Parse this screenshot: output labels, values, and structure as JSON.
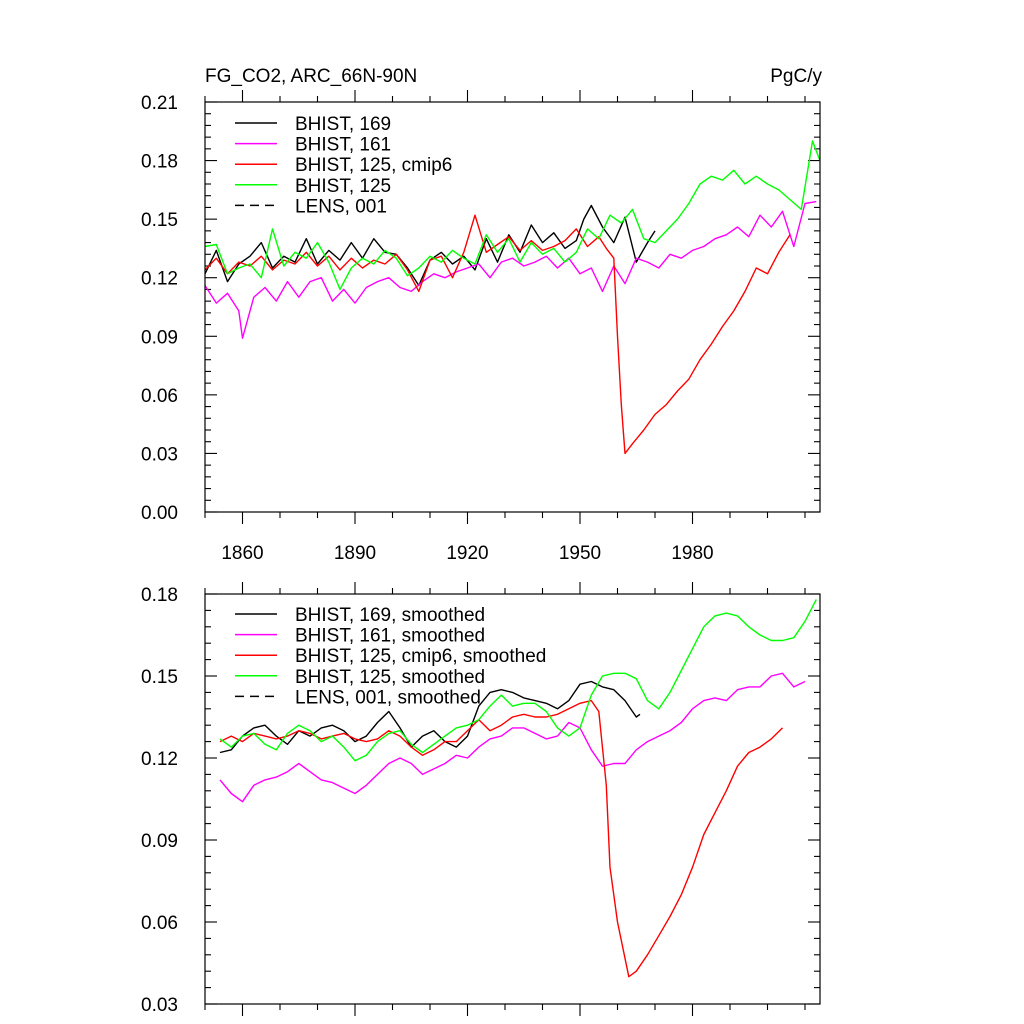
{
  "chart_data": [
    {
      "type": "line",
      "title": "FG_CO2, ARC_66N-90N",
      "units": "PgC/y",
      "xlim": [
        1850,
        2014
      ],
      "ylim": [
        0.0,
        0.21
      ],
      "xticks": [
        1860,
        1890,
        1920,
        1950,
        1980
      ],
      "xtick_labels": [
        "1860",
        "1890",
        "1920",
        "1950",
        "1980"
      ],
      "yticks": [
        0.0,
        0.03,
        0.06,
        0.09,
        0.12,
        0.15,
        0.18,
        0.21
      ],
      "ytick_labels": [
        "0.00",
        "0.03",
        "0.06",
        "0.09",
        "0.12",
        "0.15",
        "0.18",
        "0.21"
      ],
      "legend_position": "top-left",
      "series": [
        {
          "name": "BHIST, 169",
          "color": "#000000",
          "dash": "solid",
          "x": [
            1850,
            1853,
            1856,
            1859,
            1862,
            1865,
            1868,
            1871,
            1874,
            1877,
            1880,
            1883,
            1886,
            1889,
            1892,
            1895,
            1898,
            1901,
            1904,
            1907,
            1910,
            1913,
            1916,
            1919,
            1922,
            1925,
            1928,
            1931,
            1934,
            1937,
            1940,
            1943,
            1946,
            1949,
            1951,
            1953,
            1956,
            1959,
            1962,
            1965,
            1968,
            1970
          ],
          "y": [
            0.122,
            0.134,
            0.118,
            0.127,
            0.131,
            0.138,
            0.125,
            0.131,
            0.128,
            0.14,
            0.127,
            0.134,
            0.129,
            0.138,
            0.13,
            0.14,
            0.133,
            0.132,
            0.125,
            0.116,
            0.129,
            0.133,
            0.127,
            0.131,
            0.124,
            0.14,
            0.128,
            0.142,
            0.133,
            0.147,
            0.138,
            0.143,
            0.135,
            0.139,
            0.15,
            0.157,
            0.146,
            0.138,
            0.151,
            0.128,
            0.138,
            0.144
          ]
        },
        {
          "name": "BHIST, 161",
          "color": "#ff00ff",
          "dash": "solid",
          "x": [
            1850,
            1853,
            1856,
            1859,
            1860,
            1863,
            1866,
            1869,
            1872,
            1875,
            1878,
            1881,
            1884,
            1887,
            1890,
            1893,
            1896,
            1899,
            1902,
            1905,
            1908,
            1911,
            1914,
            1917,
            1920,
            1923,
            1926,
            1929,
            1932,
            1935,
            1938,
            1941,
            1944,
            1947,
            1950,
            1953,
            1956,
            1959,
            1962,
            1965,
            1968,
            1971,
            1974,
            1977,
            1980,
            1983,
            1986,
            1989,
            1992,
            1995,
            1998,
            2001,
            2004,
            2007,
            2010,
            2013
          ],
          "y": [
            0.116,
            0.107,
            0.112,
            0.103,
            0.089,
            0.11,
            0.115,
            0.108,
            0.118,
            0.11,
            0.118,
            0.12,
            0.108,
            0.114,
            0.107,
            0.115,
            0.118,
            0.12,
            0.115,
            0.113,
            0.118,
            0.122,
            0.12,
            0.123,
            0.125,
            0.127,
            0.12,
            0.128,
            0.13,
            0.126,
            0.128,
            0.131,
            0.125,
            0.13,
            0.122,
            0.125,
            0.113,
            0.126,
            0.117,
            0.13,
            0.128,
            0.125,
            0.132,
            0.13,
            0.134,
            0.136,
            0.14,
            0.142,
            0.146,
            0.141,
            0.152,
            0.146,
            0.154,
            0.136,
            0.158,
            0.159
          ]
        },
        {
          "name": "BHIST, 125, cmip6",
          "color": "#ff0000",
          "dash": "solid",
          "x": [
            1850,
            1853,
            1856,
            1859,
            1862,
            1865,
            1868,
            1871,
            1874,
            1877,
            1880,
            1883,
            1886,
            1889,
            1892,
            1895,
            1898,
            1901,
            1904,
            1907,
            1910,
            1913,
            1916,
            1919,
            1922,
            1925,
            1928,
            1931,
            1934,
            1937,
            1940,
            1943,
            1946,
            1949,
            1952,
            1955,
            1957,
            1959,
            1960,
            1961,
            1962,
            1964,
            1967,
            1970,
            1973,
            1976,
            1979,
            1982,
            1985,
            1988,
            1991,
            1994,
            1997,
            2000,
            2003,
            2006
          ],
          "y": [
            0.124,
            0.13,
            0.122,
            0.128,
            0.126,
            0.131,
            0.124,
            0.129,
            0.127,
            0.133,
            0.126,
            0.131,
            0.124,
            0.13,
            0.125,
            0.129,
            0.127,
            0.132,
            0.124,
            0.113,
            0.129,
            0.131,
            0.12,
            0.133,
            0.152,
            0.133,
            0.137,
            0.141,
            0.134,
            0.139,
            0.134,
            0.136,
            0.139,
            0.145,
            0.136,
            0.141,
            0.135,
            0.13,
            0.09,
            0.055,
            0.03,
            0.035,
            0.042,
            0.05,
            0.055,
            0.062,
            0.068,
            0.078,
            0.086,
            0.095,
            0.103,
            0.113,
            0.125,
            0.122,
            0.133,
            0.142
          ]
        },
        {
          "name": "BHIST, 125",
          "color": "#00ff00",
          "dash": "solid",
          "x": [
            1850,
            1853,
            1856,
            1859,
            1862,
            1865,
            1868,
            1871,
            1874,
            1877,
            1880,
            1883,
            1886,
            1889,
            1892,
            1895,
            1898,
            1901,
            1904,
            1907,
            1910,
            1913,
            1916,
            1919,
            1922,
            1925,
            1928,
            1931,
            1934,
            1937,
            1940,
            1943,
            1946,
            1949,
            1952,
            1955,
            1958,
            1961,
            1964,
            1967,
            1970,
            1973,
            1976,
            1979,
            1982,
            1985,
            1988,
            1991,
            1994,
            1997,
            2000,
            2003,
            2006,
            2009,
            2012,
            2014
          ],
          "y": [
            0.136,
            0.137,
            0.122,
            0.125,
            0.127,
            0.12,
            0.145,
            0.126,
            0.133,
            0.13,
            0.138,
            0.128,
            0.114,
            0.125,
            0.13,
            0.127,
            0.134,
            0.13,
            0.121,
            0.125,
            0.131,
            0.128,
            0.134,
            0.13,
            0.127,
            0.142,
            0.133,
            0.14,
            0.128,
            0.138,
            0.132,
            0.135,
            0.128,
            0.133,
            0.145,
            0.14,
            0.152,
            0.148,
            0.155,
            0.14,
            0.138,
            0.144,
            0.15,
            0.158,
            0.168,
            0.172,
            0.17,
            0.175,
            0.168,
            0.172,
            0.168,
            0.165,
            0.16,
            0.155,
            0.19,
            0.18
          ]
        },
        {
          "name": "LENS, 001",
          "color": "#000000",
          "dash": "dashed",
          "x": [],
          "y": []
        }
      ]
    },
    {
      "type": "line",
      "title": "",
      "xlim": [
        1850,
        2014
      ],
      "ylim": [
        0.03,
        0.18
      ],
      "xticks": [
        1860,
        1890,
        1920,
        1950,
        1980
      ],
      "yticks": [
        0.03,
        0.06,
        0.09,
        0.12,
        0.15,
        0.18
      ],
      "ytick_labels": [
        "0.03",
        "0.06",
        "0.09",
        "0.12",
        "0.15",
        "0.18"
      ],
      "legend_position": "top-left",
      "series": [
        {
          "name": "BHIST, 169, smoothed",
          "color": "#000000",
          "dash": "solid",
          "x": [
            1854,
            1857,
            1860,
            1863,
            1866,
            1869,
            1872,
            1875,
            1878,
            1881,
            1884,
            1887,
            1890,
            1893,
            1896,
            1899,
            1902,
            1905,
            1908,
            1911,
            1914,
            1917,
            1920,
            1923,
            1926,
            1929,
            1932,
            1935,
            1938,
            1941,
            1944,
            1947,
            1950,
            1953,
            1956,
            1959,
            1962,
            1965,
            1966
          ],
          "y": [
            0.122,
            0.123,
            0.128,
            0.131,
            0.132,
            0.128,
            0.125,
            0.13,
            0.128,
            0.131,
            0.132,
            0.13,
            0.126,
            0.128,
            0.133,
            0.137,
            0.131,
            0.124,
            0.128,
            0.13,
            0.126,
            0.124,
            0.128,
            0.139,
            0.144,
            0.145,
            0.144,
            0.142,
            0.141,
            0.14,
            0.138,
            0.141,
            0.147,
            0.148,
            0.146,
            0.145,
            0.141,
            0.135,
            0.136
          ]
        },
        {
          "name": "BHIST, 161, smoothed",
          "color": "#ff00ff",
          "dash": "solid",
          "x": [
            1854,
            1857,
            1860,
            1863,
            1866,
            1869,
            1872,
            1875,
            1878,
            1881,
            1884,
            1887,
            1890,
            1893,
            1896,
            1899,
            1902,
            1905,
            1908,
            1911,
            1914,
            1917,
            1920,
            1923,
            1926,
            1929,
            1932,
            1935,
            1938,
            1941,
            1944,
            1947,
            1950,
            1953,
            1956,
            1959,
            1962,
            1965,
            1968,
            1971,
            1974,
            1977,
            1980,
            1983,
            1986,
            1989,
            1992,
            1995,
            1998,
            2001,
            2004,
            2007,
            2010
          ],
          "y": [
            0.112,
            0.107,
            0.104,
            0.11,
            0.112,
            0.113,
            0.115,
            0.118,
            0.115,
            0.112,
            0.111,
            0.109,
            0.107,
            0.11,
            0.114,
            0.118,
            0.12,
            0.118,
            0.114,
            0.116,
            0.118,
            0.121,
            0.12,
            0.124,
            0.127,
            0.128,
            0.131,
            0.131,
            0.129,
            0.127,
            0.128,
            0.133,
            0.131,
            0.123,
            0.117,
            0.118,
            0.118,
            0.123,
            0.126,
            0.128,
            0.13,
            0.133,
            0.138,
            0.141,
            0.142,
            0.141,
            0.145,
            0.146,
            0.146,
            0.15,
            0.151,
            0.146,
            0.148
          ]
        },
        {
          "name": "BHIST, 125, cmip6, smoothed",
          "color": "#ff0000",
          "dash": "solid",
          "x": [
            1854,
            1857,
            1860,
            1863,
            1866,
            1869,
            1872,
            1875,
            1878,
            1881,
            1884,
            1887,
            1890,
            1893,
            1896,
            1899,
            1902,
            1905,
            1908,
            1911,
            1914,
            1917,
            1920,
            1923,
            1926,
            1929,
            1932,
            1935,
            1938,
            1941,
            1944,
            1947,
            1950,
            1953,
            1955,
            1957,
            1958,
            1960,
            1963,
            1965,
            1968,
            1971,
            1974,
            1977,
            1980,
            1983,
            1986,
            1989,
            1992,
            1995,
            1998,
            2001,
            2004
          ],
          "y": [
            0.126,
            0.128,
            0.126,
            0.129,
            0.128,
            0.127,
            0.128,
            0.13,
            0.129,
            0.127,
            0.128,
            0.129,
            0.127,
            0.126,
            0.127,
            0.13,
            0.128,
            0.124,
            0.121,
            0.123,
            0.126,
            0.126,
            0.13,
            0.134,
            0.13,
            0.132,
            0.135,
            0.136,
            0.135,
            0.135,
            0.136,
            0.138,
            0.14,
            0.141,
            0.137,
            0.11,
            0.08,
            0.06,
            0.04,
            0.042,
            0.048,
            0.055,
            0.062,
            0.07,
            0.08,
            0.092,
            0.1,
            0.108,
            0.117,
            0.122,
            0.124,
            0.127,
            0.131
          ]
        },
        {
          "name": "BHIST, 125, smoothed",
          "color": "#00ff00",
          "dash": "solid",
          "x": [
            1854,
            1857,
            1860,
            1863,
            1866,
            1869,
            1872,
            1875,
            1878,
            1881,
            1884,
            1887,
            1890,
            1893,
            1896,
            1899,
            1902,
            1905,
            1908,
            1911,
            1914,
            1917,
            1920,
            1923,
            1926,
            1929,
            1932,
            1935,
            1938,
            1941,
            1944,
            1947,
            1950,
            1953,
            1956,
            1959,
            1962,
            1965,
            1968,
            1971,
            1974,
            1977,
            1980,
            1983,
            1986,
            1989,
            1992,
            1995,
            1998,
            2001,
            2004,
            2007,
            2010,
            2013
          ],
          "y": [
            0.127,
            0.124,
            0.128,
            0.129,
            0.125,
            0.123,
            0.129,
            0.132,
            0.13,
            0.126,
            0.128,
            0.124,
            0.119,
            0.121,
            0.126,
            0.129,
            0.13,
            0.125,
            0.122,
            0.125,
            0.128,
            0.131,
            0.132,
            0.134,
            0.139,
            0.143,
            0.139,
            0.14,
            0.14,
            0.137,
            0.131,
            0.128,
            0.131,
            0.143,
            0.15,
            0.151,
            0.151,
            0.149,
            0.141,
            0.138,
            0.144,
            0.152,
            0.16,
            0.168,
            0.172,
            0.173,
            0.172,
            0.168,
            0.165,
            0.163,
            0.163,
            0.164,
            0.17,
            0.178
          ]
        },
        {
          "name": "LENS, 001, smoothed",
          "color": "#000000",
          "dash": "dashed",
          "x": [],
          "y": []
        }
      ]
    }
  ]
}
